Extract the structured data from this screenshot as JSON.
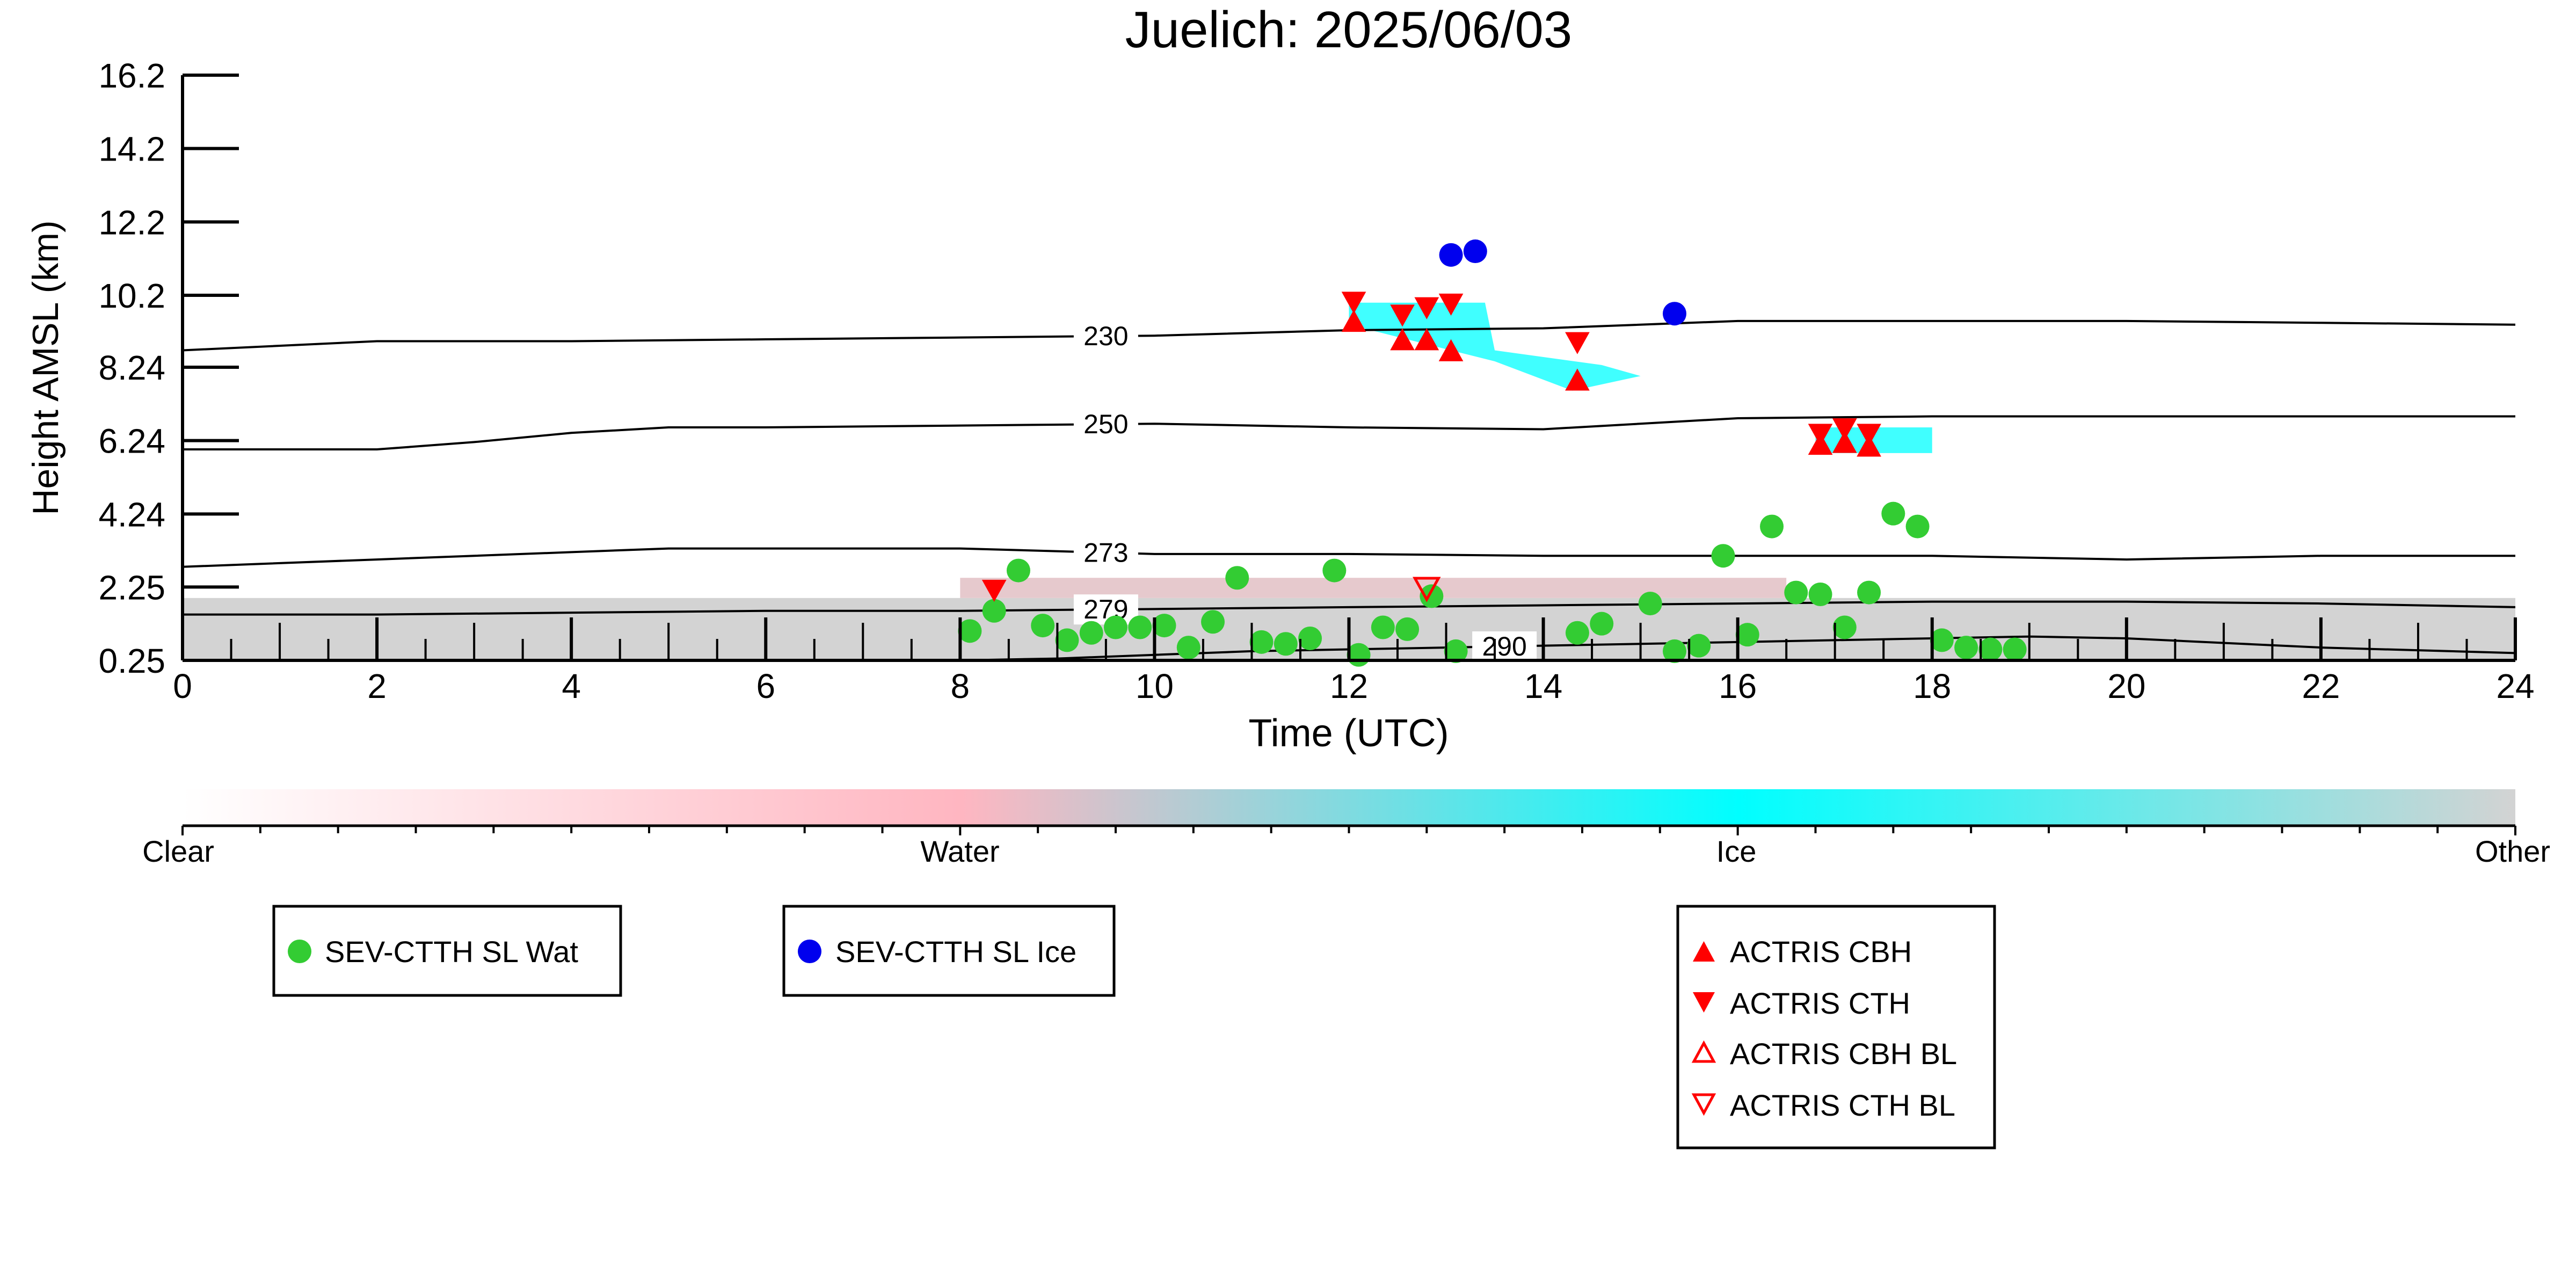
{
  "chart_data": {
    "type": "scatter",
    "title": "Juelich: 2025/06/03",
    "xlabel": "Time (UTC)",
    "ylabel": "Height AMSL (km)",
    "xlim": [
      0,
      24
    ],
    "ylim": [
      0.25,
      16.2
    ],
    "x_ticks": [
      "0",
      "2",
      "4",
      "6",
      "8",
      "10",
      "12",
      "14",
      "16",
      "18",
      "20",
      "22",
      "24"
    ],
    "y_ticks": [
      "0.25",
      "2.25",
      "4.24",
      "6.24",
      "8.24",
      "10.2",
      "12.2",
      "14.2",
      "16.2"
    ],
    "y_tick_values": [
      0.25,
      2.25,
      4.24,
      6.24,
      8.24,
      10.2,
      12.2,
      14.2,
      16.2
    ],
    "grid": false,
    "colorbar": {
      "labels": [
        "Clear",
        "Water",
        "Ice",
        "Other"
      ],
      "colors": [
        "#ffffff",
        "#ffb6c1",
        "#00ffff",
        "#d3d3d3"
      ]
    },
    "isotherms": [
      {
        "label": "230",
        "label_x": 9.5,
        "x": [
          0,
          2,
          4,
          6,
          8,
          10,
          12,
          14,
          16,
          18,
          20,
          22,
          24
        ],
        "y": [
          8.7,
          8.95,
          8.95,
          9.0,
          9.05,
          9.1,
          9.25,
          9.3,
          9.5,
          9.5,
          9.5,
          9.45,
          9.4
        ]
      },
      {
        "label": "250",
        "label_x": 9.5,
        "x": [
          0,
          2,
          3,
          4,
          5,
          6,
          8,
          10,
          12,
          14,
          16,
          18,
          20,
          22,
          24
        ],
        "y": [
          6.0,
          6.0,
          6.2,
          6.45,
          6.6,
          6.6,
          6.65,
          6.7,
          6.6,
          6.55,
          6.85,
          6.9,
          6.9,
          6.9,
          6.9
        ]
      },
      {
        "label": "273",
        "label_x": 9.5,
        "x": [
          0,
          2,
          4,
          5,
          6,
          8,
          10,
          12,
          14,
          16,
          18,
          20,
          22,
          24
        ],
        "y": [
          2.8,
          3.0,
          3.2,
          3.3,
          3.3,
          3.3,
          3.15,
          3.15,
          3.1,
          3.1,
          3.1,
          3.0,
          3.1,
          3.1
        ]
      },
      {
        "label": "279",
        "label_x": 9.5,
        "x": [
          0,
          2,
          4,
          6,
          8,
          10,
          12,
          14,
          16,
          18,
          20,
          22,
          24
        ],
        "y": [
          1.5,
          1.5,
          1.55,
          1.6,
          1.6,
          1.65,
          1.7,
          1.75,
          1.8,
          1.85,
          1.85,
          1.8,
          1.7
        ]
      },
      {
        "label": "290",
        "label_x": 13.6,
        "x": [
          8,
          9,
          10,
          11,
          12,
          13,
          14,
          15,
          16,
          17,
          18,
          19,
          20,
          22,
          24
        ],
        "y": [
          0.25,
          0.3,
          0.4,
          0.5,
          0.55,
          0.6,
          0.65,
          0.7,
          0.75,
          0.8,
          0.85,
          0.9,
          0.85,
          0.6,
          0.45
        ]
      }
    ],
    "series": [
      {
        "name": "SEV-CTTH SL Wat",
        "marker": "circle",
        "color": "#33cc33",
        "x": [
          8.1,
          8.35,
          8.6,
          8.85,
          9.1,
          9.35,
          9.6,
          9.85,
          10.1,
          10.35,
          10.6,
          10.85,
          11.1,
          11.35,
          11.6,
          11.85,
          12.1,
          12.35,
          12.6,
          12.85,
          13.1,
          14.35,
          14.6,
          15.1,
          15.35,
          15.6,
          15.85,
          16.1,
          16.35,
          16.6,
          16.85,
          17.1,
          17.35,
          17.6,
          17.85,
          18.1,
          18.35,
          18.6,
          18.85
        ],
        "y": [
          1.05,
          1.6,
          2.7,
          1.2,
          0.8,
          1.0,
          1.15,
          1.15,
          1.2,
          0.6,
          1.3,
          2.5,
          0.75,
          0.7,
          0.85,
          2.7,
          0.4,
          1.15,
          1.1,
          2.0,
          0.5,
          1.0,
          1.25,
          1.8,
          0.5,
          0.65,
          3.1,
          0.95,
          3.9,
          2.1,
          2.05,
          1.15,
          2.1,
          4.25,
          3.9,
          0.8,
          0.6,
          0.55,
          0.55
        ]
      },
      {
        "name": "SEV-CTTH SL Ice",
        "marker": "circle",
        "color": "#0000ee",
        "x": [
          13.05,
          13.3,
          15.35
        ],
        "y": [
          11.3,
          11.4,
          9.7
        ]
      },
      {
        "name": "ACTRIS CBH",
        "marker": "triangle-up",
        "color": "#ff0000",
        "x": [
          12.05,
          12.55,
          12.8,
          13.05,
          14.35,
          16.85,
          17.1,
          17.35
        ],
        "y": [
          9.5,
          9.0,
          9.0,
          8.7,
          7.9,
          6.15,
          6.2,
          6.1
        ]
      },
      {
        "name": "ACTRIS CTH",
        "marker": "triangle-down",
        "color": "#ff0000",
        "x": [
          8.35,
          12.05,
          12.55,
          12.8,
          13.05,
          14.35,
          16.85,
          17.1,
          17.35
        ],
        "y": [
          2.15,
          10.0,
          9.65,
          9.85,
          9.95,
          8.9,
          6.4,
          6.55,
          6.4
        ]
      },
      {
        "name": "ACTRIS CBH BL",
        "marker": "triangle-up-open",
        "color": "#ff0000",
        "x": [],
        "y": []
      },
      {
        "name": "ACTRIS CTH BL",
        "marker": "triangle-down-open",
        "color": "#ff0000",
        "x": [
          12.8
        ],
        "y": [
          2.2
        ]
      }
    ],
    "legends": [
      {
        "entries": [
          "SEV-CTTH SL Wat"
        ]
      },
      {
        "entries": [
          "SEV-CTTH SL Ice"
        ]
      },
      {
        "entries": [
          "ACTRIS CBH",
          "ACTRIS CTH",
          "ACTRIS CBH BL",
          "ACTRIS CTH BL"
        ]
      }
    ]
  }
}
